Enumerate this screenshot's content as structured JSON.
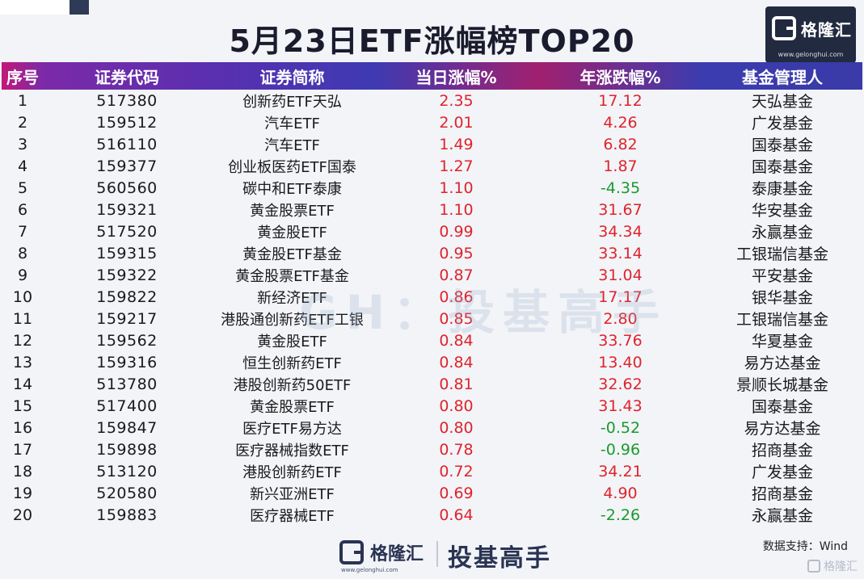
{
  "title": "5月23日ETF涨幅榜TOP20",
  "brand": {
    "name": "格隆汇",
    "url": "www.gelonghui.com"
  },
  "watermark": "GH：投基高手",
  "table": {
    "headers": [
      "序号",
      "证券代码",
      "证券简称",
      "当日涨幅%",
      "年涨跌幅%",
      "基金管理人"
    ],
    "rows": [
      [
        "1",
        "517380",
        "创新药ETF天弘",
        "2.35",
        "17.12",
        "天弘基金"
      ],
      [
        "2",
        "159512",
        "汽车ETF",
        "2.01",
        "4.26",
        "广发基金"
      ],
      [
        "3",
        "516110",
        "汽车ETF",
        "1.49",
        "6.82",
        "国泰基金"
      ],
      [
        "4",
        "159377",
        "创业板医药ETF国泰",
        "1.27",
        "1.87",
        "国泰基金"
      ],
      [
        "5",
        "560560",
        "碳中和ETF泰康",
        "1.10",
        "-4.35",
        "泰康基金"
      ],
      [
        "6",
        "159321",
        "黄金股票ETF",
        "1.10",
        "31.67",
        "华安基金"
      ],
      [
        "7",
        "517520",
        "黄金股ETF",
        "0.99",
        "34.34",
        "永赢基金"
      ],
      [
        "8",
        "159315",
        "黄金股ETF基金",
        "0.95",
        "33.14",
        "工银瑞信基金"
      ],
      [
        "9",
        "159322",
        "黄金股票ETF基金",
        "0.87",
        "31.04",
        "平安基金"
      ],
      [
        "10",
        "159822",
        "新经济ETF",
        "0.86",
        "17.17",
        "银华基金"
      ],
      [
        "11",
        "159217",
        "港股通创新药ETF工银",
        "0.85",
        "2.80",
        "工银瑞信基金"
      ],
      [
        "12",
        "159562",
        "黄金股ETF",
        "0.84",
        "33.76",
        "华夏基金"
      ],
      [
        "13",
        "159316",
        "恒生创新药ETF",
        "0.84",
        "13.40",
        "易方达基金"
      ],
      [
        "14",
        "513780",
        "港股创新药50ETF",
        "0.81",
        "32.62",
        "景顺长城基金"
      ],
      [
        "15",
        "517400",
        "黄金股票ETF",
        "0.80",
        "31.43",
        "国泰基金"
      ],
      [
        "16",
        "159847",
        "医疗ETF易方达",
        "0.80",
        "-0.52",
        "易方达基金"
      ],
      [
        "17",
        "159898",
        "医疗器械指数ETF",
        "0.78",
        "-0.96",
        "招商基金"
      ],
      [
        "18",
        "513120",
        "港股创新药ETF",
        "0.72",
        "34.21",
        "广发基金"
      ],
      [
        "19",
        "520580",
        "新兴亚洲ETF",
        "0.69",
        "4.90",
        "招商基金"
      ],
      [
        "20",
        "159883",
        "医疗器械ETF",
        "0.64",
        "-2.26",
        "永赢基金"
      ]
    ]
  },
  "footer": {
    "brand": "格隆汇",
    "url": "www.gelonghui.com",
    "slogan": "投基高手",
    "data_source": "数据支持：Wind",
    "badge": "格隆汇"
  },
  "colors": {
    "up": "#e0232b",
    "down": "#1a9a2c",
    "header_magenta": "#a1206f",
    "header_indigo": "#3e3ab2"
  }
}
